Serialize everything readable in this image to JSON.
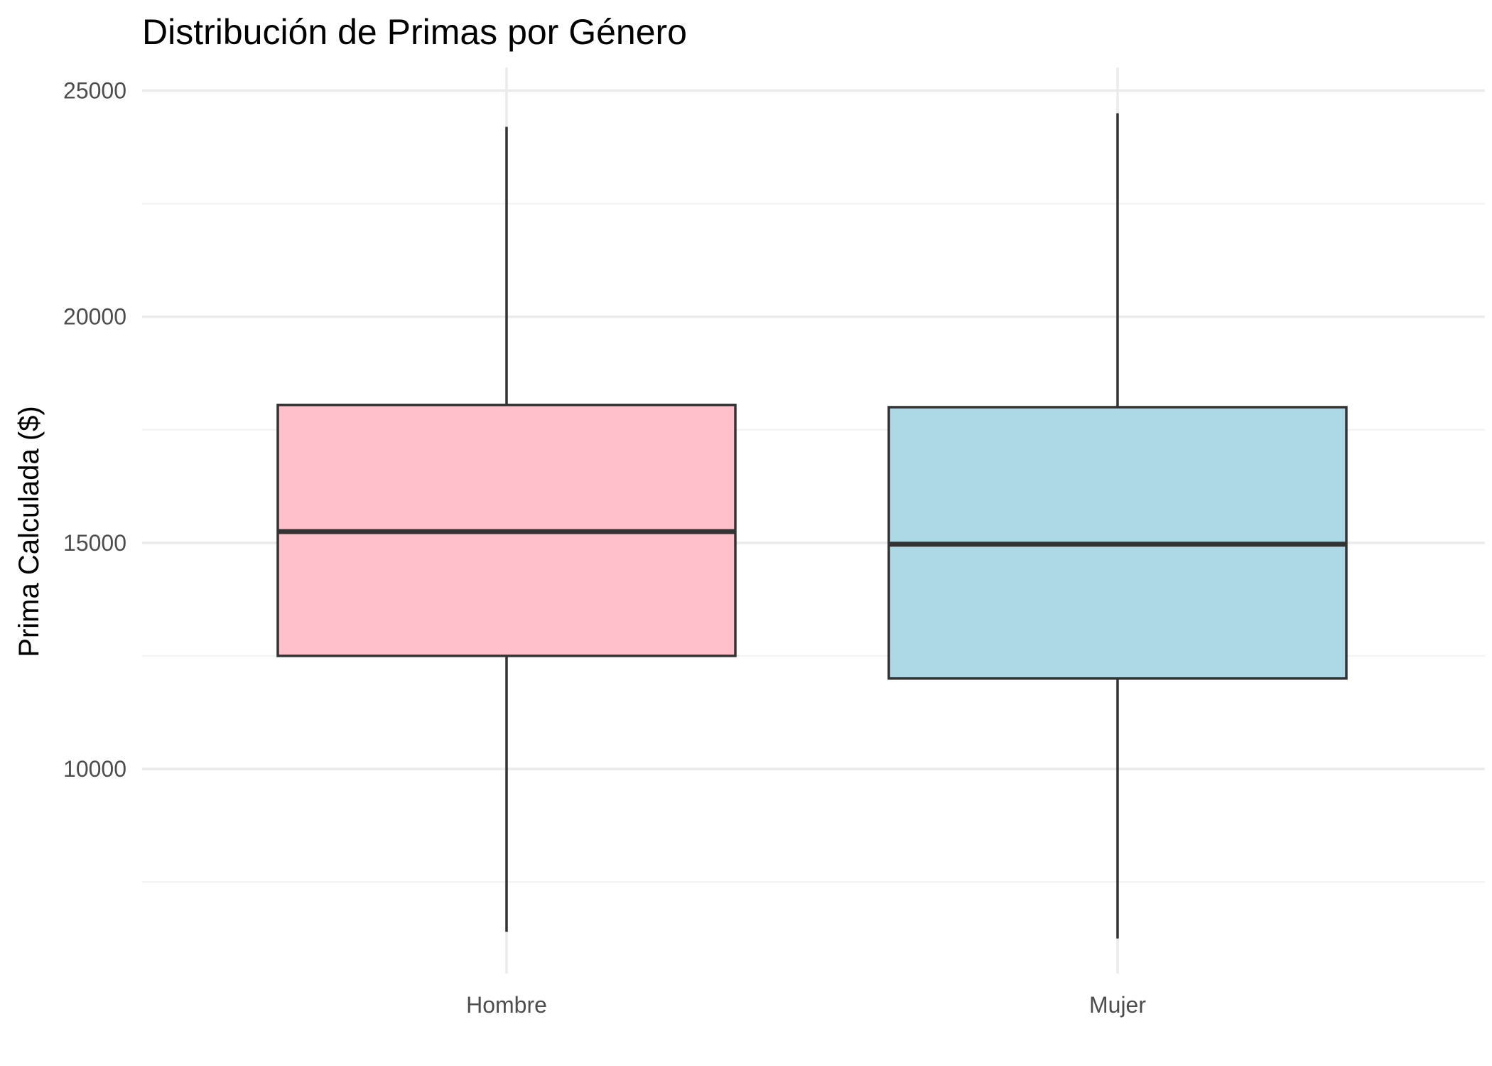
{
  "chart_data": {
    "type": "boxplot",
    "title": "Distribución de Primas por Género",
    "xlabel": "",
    "ylabel": "Prima Calculada ($)",
    "ylim": [
      6000,
      25500
    ],
    "yticks": [
      10000,
      15000,
      20000,
      25000
    ],
    "grid": true,
    "legend": "none",
    "categories": [
      "Hombre",
      "Mujer"
    ],
    "boxes": [
      {
        "category": "Hombre",
        "whisker_low": 6400,
        "q1": 12500,
        "median": 15250,
        "q3": 18050,
        "whisker_high": 24200,
        "fill": "#ffc0cb"
      },
      {
        "category": "Mujer",
        "whisker_low": 6250,
        "q1": 12000,
        "median": 14970,
        "q3": 18000,
        "whisker_high": 24500,
        "fill": "#add8e6"
      }
    ],
    "colors": {
      "grid_major": "#ebebeb",
      "grid_minor": "#f2f2f2",
      "stroke": "#333333",
      "tick_text": "#4d4d4d"
    }
  }
}
